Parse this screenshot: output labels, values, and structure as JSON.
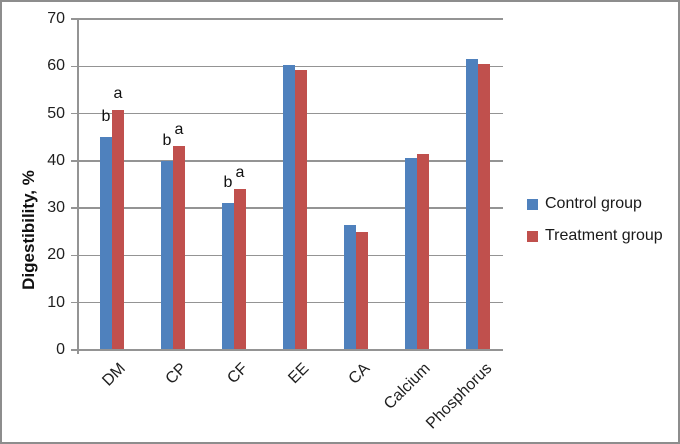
{
  "chart_data": {
    "type": "bar",
    "title": "",
    "ylabel": "Digestibility, %",
    "xlabel": "",
    "ylim": [
      0,
      70
    ],
    "ytick_step": 10,
    "yticks": [
      0,
      10,
      20,
      30,
      40,
      50,
      60,
      70
    ],
    "grid": true,
    "legend_position": "right-middle",
    "categories": [
      "DM",
      "CP",
      "CF",
      "EE",
      "CA",
      "Calcium",
      "Phosphorus"
    ],
    "series": [
      {
        "name": "Control group",
        "color": "#4f81bd",
        "values": [
          45.0,
          40.0,
          31.0,
          60.2,
          26.5,
          40.5,
          61.5
        ]
      },
      {
        "name": "Treatment group",
        "color": "#c0504d",
        "values": [
          50.7,
          43.2,
          34.0,
          59.2,
          25.0,
          41.5,
          60.5
        ]
      }
    ],
    "significance_letters": [
      {
        "category": "DM",
        "category_index": 0,
        "control": "b",
        "treatment": "a"
      },
      {
        "category": "CP",
        "category_index": 1,
        "control": "b",
        "treatment": "a"
      },
      {
        "category": "CF",
        "category_index": 2,
        "control": "b",
        "treatment": "a"
      }
    ]
  },
  "colors": {
    "control": "#4f81bd",
    "treatment": "#c0504d",
    "gridline": "#949494",
    "axis": "#949494",
    "text": "#1f1f1f",
    "border": "#8d8d8d",
    "background": "#ffffff"
  }
}
